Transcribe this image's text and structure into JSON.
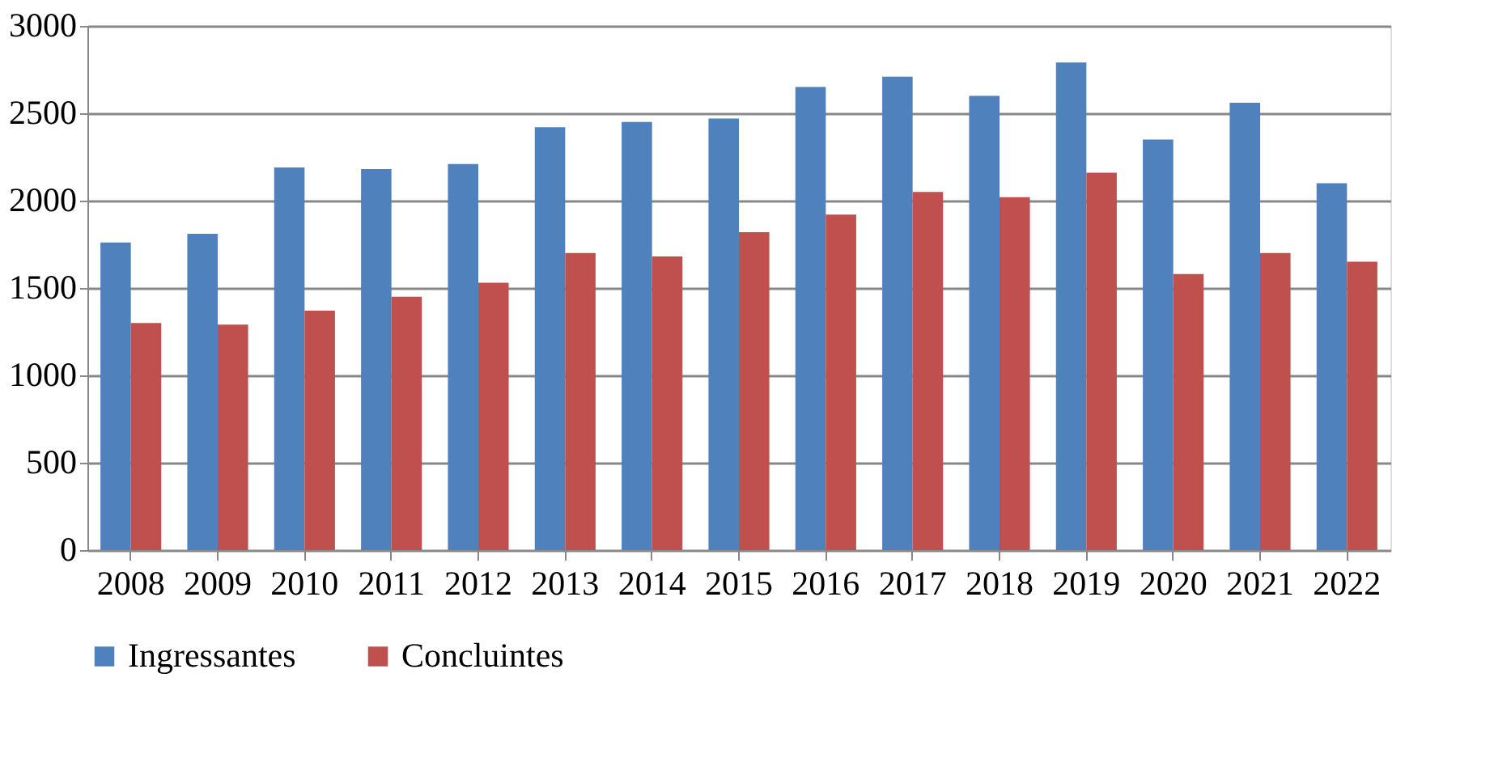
{
  "chart_data": {
    "type": "bar",
    "categories": [
      "2008",
      "2009",
      "2010",
      "2011",
      "2012",
      "2013",
      "2014",
      "2015",
      "2016",
      "2017",
      "2018",
      "2019",
      "2020",
      "2021",
      "2022"
    ],
    "series": [
      {
        "name": "Ingressantes",
        "color": "#4f81bd",
        "values": [
          1760,
          1810,
          2190,
          2180,
          2210,
          2420,
          2450,
          2470,
          2650,
          2710,
          2600,
          2790,
          2350,
          2560,
          2100
        ]
      },
      {
        "name": "Concluintes",
        "color": "#c0504d",
        "values": [
          1300,
          1290,
          1370,
          1450,
          1530,
          1700,
          1680,
          1820,
          1920,
          2050,
          2020,
          2160,
          1580,
          1700,
          1650
        ]
      }
    ],
    "ylim": [
      0,
      3000
    ],
    "yticks": [
      0,
      500,
      1000,
      1500,
      2000,
      2500,
      3000
    ],
    "grid": "y",
    "legend": "bottom"
  }
}
